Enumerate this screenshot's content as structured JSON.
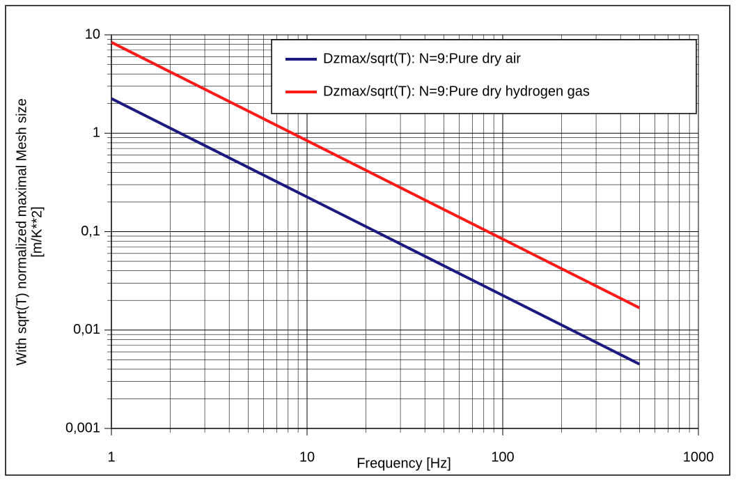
{
  "chart_data": {
    "type": "line",
    "xlabel": "Frequency [Hz]",
    "ylabel": [
      "With sqrt(T) normalized maximal Mesh size",
      "[m/K**2]"
    ],
    "x": [
      1,
      10,
      100,
      500
    ],
    "series": [
      {
        "name": "Dzmax/sqrt(T): N=9:Pure dry air",
        "color": "#1a1a80",
        "values": [
          2.25,
          0.225,
          0.0225,
          0.0045
        ]
      },
      {
        "name": "Dzmax/sqrt(T): N=9:Pure dry hydrogen gas",
        "color": "#ff1a1a",
        "values": [
          8.4,
          0.84,
          0.084,
          0.0168
        ]
      }
    ],
    "xlim": [
      1,
      1000
    ],
    "xticks": [
      1,
      10,
      100,
      1000
    ],
    "ylim": [
      0.001,
      10
    ],
    "yticks": [
      {
        "value": 0.001,
        "label": "0,001"
      },
      {
        "value": 0.01,
        "label": "0,01"
      },
      {
        "value": 0.1,
        "label": "0,1"
      },
      1,
      10
    ],
    "xscale": "log",
    "yscale": "log",
    "grid": true,
    "legend": "upper right"
  }
}
